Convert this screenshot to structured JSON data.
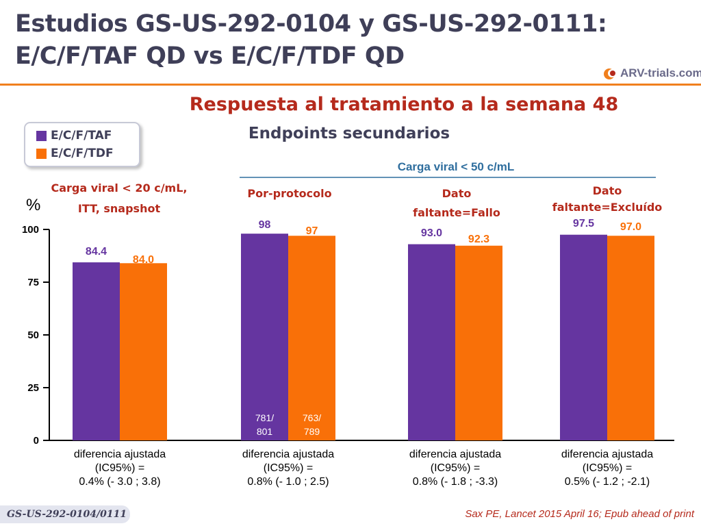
{
  "title_line1": "Estudios GS-US-292-0104 y GS-US-292-0111:",
  "title_line2": "E/C/F/TAF QD vs E/C/F/TDF QD",
  "logo": {
    "text": "ARV-trials.com"
  },
  "subtitle": "Respuesta al tratamiento a la semana 48",
  "subtitle2": "Endpoints secundarios",
  "legend": [
    {
      "label": "E/C/F/TAF",
      "color": "#6535a0"
    },
    {
      "label": "E/C/F/TDF",
      "color": "#f97008"
    }
  ],
  "footer_tag": "GS-US-292-0104/0111",
  "citation": "Sax PE, Lancet 2015 April 16; Epub ahead of print",
  "chart_data": {
    "type": "bar",
    "ylabel": "%",
    "ylim": [
      0,
      100
    ],
    "yticks": [
      "0",
      "25",
      "50",
      "75",
      "100"
    ],
    "bracket_label": "Carga viral < 50 c/mL",
    "groups": [
      {
        "header": [
          "Carga viral < 20 c/mL,",
          "ITT, snapshot"
        ],
        "header_italic": false,
        "values": [
          84.4,
          84.0
        ],
        "labels": [
          "84.4",
          "84.0"
        ],
        "counts": [],
        "footnote": [
          "diferencia ajustada",
          "(IC95%) =",
          "0.4% (- 3.0 ; 3.8)"
        ]
      },
      {
        "header": [
          "Por-protocolo"
        ],
        "values": [
          98,
          97
        ],
        "labels": [
          "98",
          "97"
        ],
        "counts": [
          [
            "781/",
            "801"
          ],
          [
            "763/",
            "789"
          ]
        ],
        "footnote": [
          "diferencia ajustada",
          "(IC95%) =",
          "0.8% (- 1.0 ; 2.5)"
        ]
      },
      {
        "header": [
          "Dato",
          "faltante=Fallo"
        ],
        "values": [
          93.0,
          92.3
        ],
        "labels": [
          "93.0",
          "92.3"
        ],
        "counts": [],
        "footnote": [
          "diferencia ajustada",
          "(IC95%) =",
          "0.8% (- 1.8 ; -3.3)"
        ]
      },
      {
        "header": [
          "Dato",
          "faltante=Excluído"
        ],
        "values": [
          97.5,
          97.0
        ],
        "labels": [
          "97.5",
          "97.0"
        ],
        "counts": [],
        "footnote": [
          "diferencia ajustada",
          "(IC95%) =",
          "0.5% (- 1.2 ; -2.1)"
        ]
      }
    ],
    "series": [
      {
        "name": "E/C/F/TAF",
        "color": "#6535a0"
      },
      {
        "name": "E/C/F/TDF",
        "color": "#f97008"
      }
    ]
  }
}
